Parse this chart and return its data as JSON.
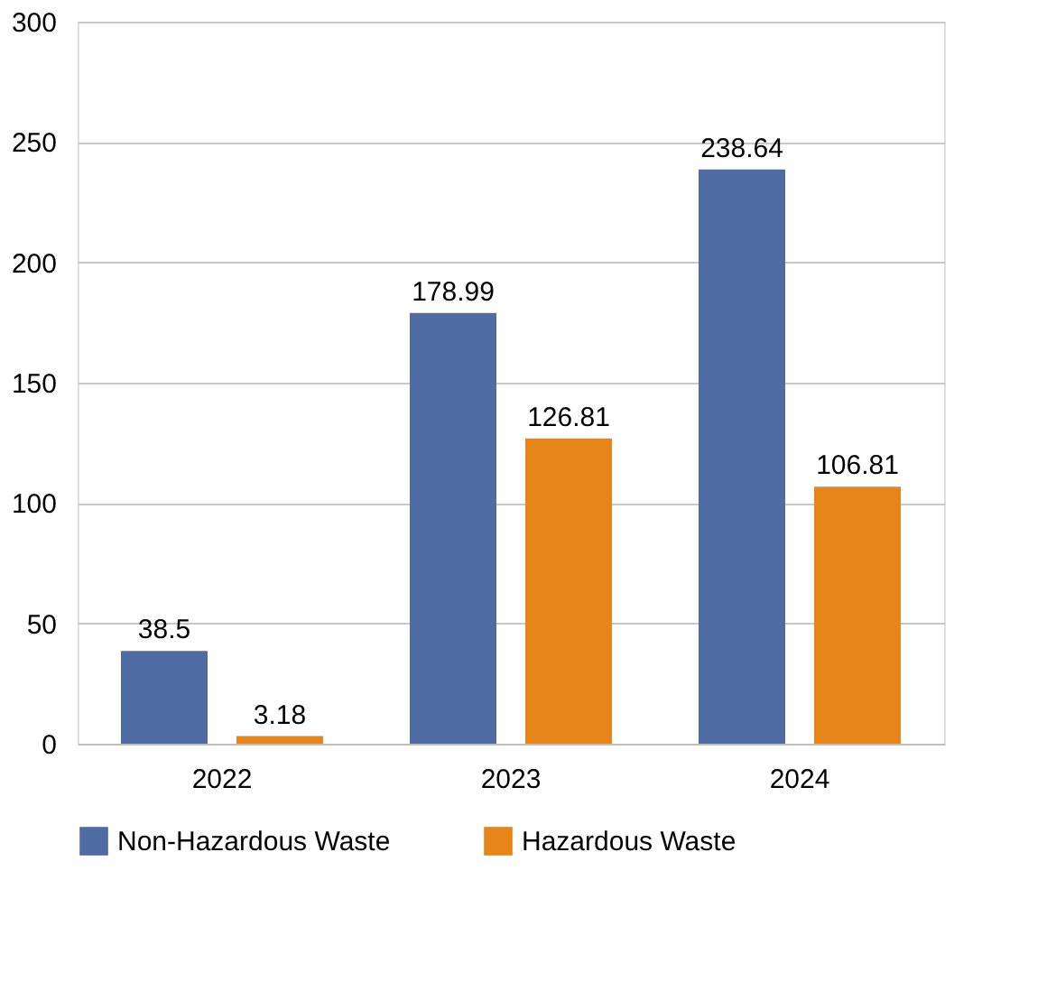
{
  "chart_data": {
    "type": "bar",
    "categories": [
      "2022",
      "2023",
      "2024"
    ],
    "series": [
      {
        "name": "Non-Hazardous Waste",
        "color": "#4e6ba3",
        "values": [
          38.5,
          178.99,
          238.64
        ]
      },
      {
        "name": "Hazardous Waste",
        "color": "#e6861a",
        "values": [
          3.18,
          126.81,
          106.81
        ]
      }
    ],
    "ylim": [
      0,
      300
    ],
    "yticks": [
      0,
      50,
      100,
      150,
      200,
      250,
      300
    ],
    "grid": "y",
    "legend": "bottom",
    "data_labels": true
  }
}
